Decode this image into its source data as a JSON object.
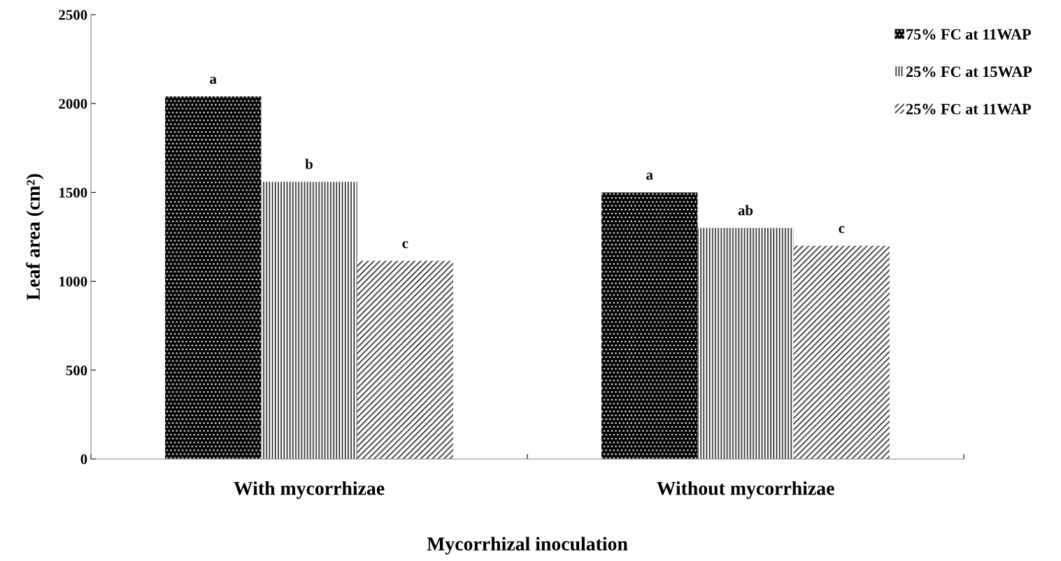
{
  "chart_data": {
    "type": "bar",
    "xlabel": "Mycorrhizal inoculation",
    "ylabel": "Leaf area (cm²)",
    "categories": [
      "With mycorrhizae",
      "Without mycorrhizae"
    ],
    "series": [
      {
        "name": "75% FC at 11WAP",
        "color": "#000000",
        "values": [
          2040,
          1500
        ],
        "value_labels": [
          "a",
          "a"
        ]
      },
      {
        "name": "25% FC at 15WAP",
        "color": "#000000",
        "values": [
          1560,
          1300
        ],
        "value_labels": [
          "b",
          "ab"
        ]
      },
      {
        "name": "25% FC at 11WAP",
        "color": "#000000",
        "values": [
          1115,
          1200
        ],
        "value_labels": [
          "c",
          "c"
        ]
      }
    ],
    "ylim": [
      0,
      2500
    ],
    "yticks": [
      0,
      500,
      1000,
      1500,
      2000,
      2500
    ],
    "grid": false,
    "legend": "top right"
  }
}
